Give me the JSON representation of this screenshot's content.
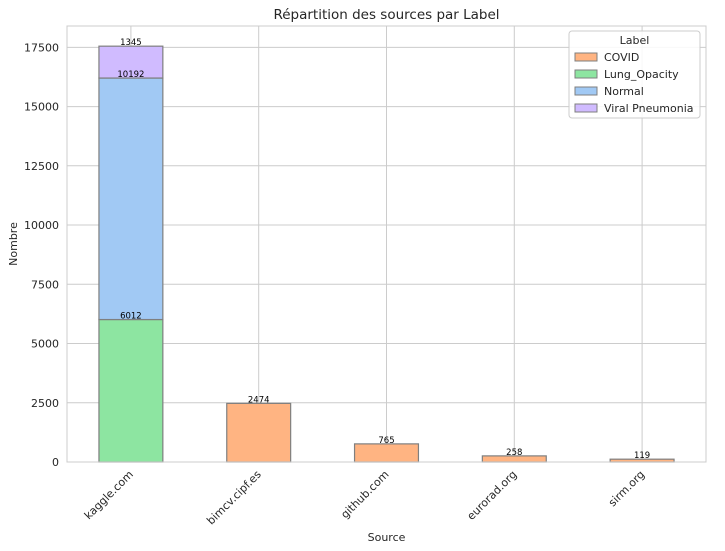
{
  "chart_data": {
    "type": "bar",
    "stacked": true,
    "title": "Répartition des sources par Label",
    "xlabel": "Source",
    "ylabel": "Nombre",
    "categories": [
      "kaggle.com",
      "bimcv.cipf.es",
      "github.com",
      "eurorad.org",
      "sirm.org"
    ],
    "series": [
      {
        "name": "COVID",
        "values": [
          0,
          2474,
          765,
          258,
          119
        ]
      },
      {
        "name": "Lung_Opacity",
        "values": [
          6012,
          0,
          0,
          0,
          0
        ]
      },
      {
        "name": "Normal",
        "values": [
          10192,
          0,
          0,
          0,
          0
        ]
      },
      {
        "name": "Viral Pneumonia",
        "values": [
          1345,
          0,
          0,
          0,
          0
        ]
      }
    ],
    "data_labels": [
      {
        "category": "kaggle.com",
        "series": "Lung_Opacity",
        "text": "6012"
      },
      {
        "category": "kaggle.com",
        "series": "Normal",
        "text": "10192"
      },
      {
        "category": "kaggle.com",
        "series": "Viral Pneumonia",
        "text": "1345"
      },
      {
        "category": "bimcv.cipf.es",
        "series": "COVID",
        "text": "2474"
      },
      {
        "category": "github.com",
        "series": "COVID",
        "text": "765"
      },
      {
        "category": "eurorad.org",
        "series": "COVID",
        "text": "258"
      },
      {
        "category": "sirm.org",
        "series": "COVID",
        "text": "119"
      }
    ],
    "ylim": [
      0,
      18400
    ],
    "yticks": [
      0,
      2500,
      5000,
      7500,
      10000,
      12500,
      15000,
      17500
    ],
    "grid": true,
    "legend": {
      "title": "Label",
      "placement": "top-right"
    },
    "colors": {
      "COVID": "#ffb482",
      "Lung_Opacity": "#8de5a1",
      "Normal": "#a1c9f4",
      "Viral Pneumonia": "#d0bbff"
    }
  }
}
